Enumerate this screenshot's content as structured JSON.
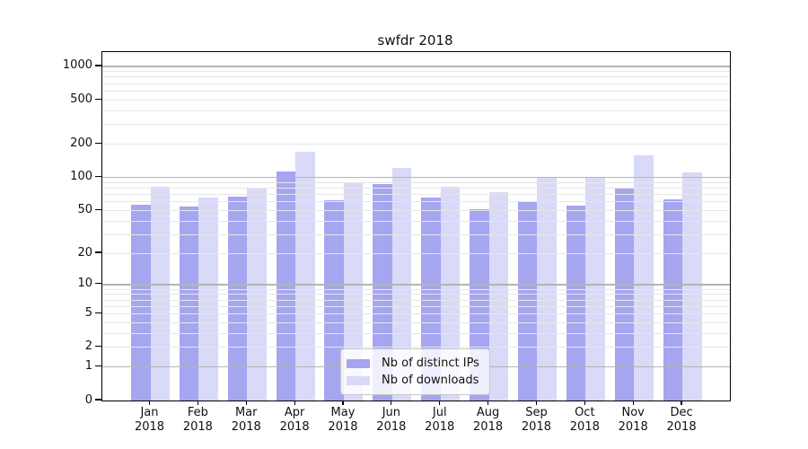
{
  "title": "swfdr 2018",
  "chart_data": {
    "type": "bar",
    "title": "swfdr 2018",
    "categories": [
      "Jan",
      "Feb",
      "Mar",
      "Apr",
      "May",
      "Jun",
      "Jul",
      "Aug",
      "Sep",
      "Oct",
      "Nov",
      "Dec"
    ],
    "category_year": "2018",
    "series": [
      {
        "name": "Nb of distinct IPs",
        "color": "#a5a5f0",
        "values": [
          56,
          54,
          67,
          112,
          62,
          87,
          65,
          51,
          61,
          55,
          81,
          63
        ]
      },
      {
        "name": "Nb of downloads",
        "color": "#d9d9f8",
        "values": [
          82,
          66,
          80,
          170,
          90,
          122,
          82,
          74,
          101,
          101,
          159,
          111
        ]
      }
    ],
    "xlabel": "",
    "ylabel": "",
    "y_scale": "log10(1+x)",
    "y_ticks": [
      0,
      1,
      2,
      5,
      10,
      20,
      50,
      100,
      200,
      500,
      1000
    ],
    "ylim": [
      0,
      1330
    ],
    "grid": true,
    "legend_position": "lower center"
  },
  "colors": {
    "major_grid": "#b4b4b4",
    "minor_grid": "#e7e7e7",
    "axis": "#000000",
    "text": "#111111"
  }
}
